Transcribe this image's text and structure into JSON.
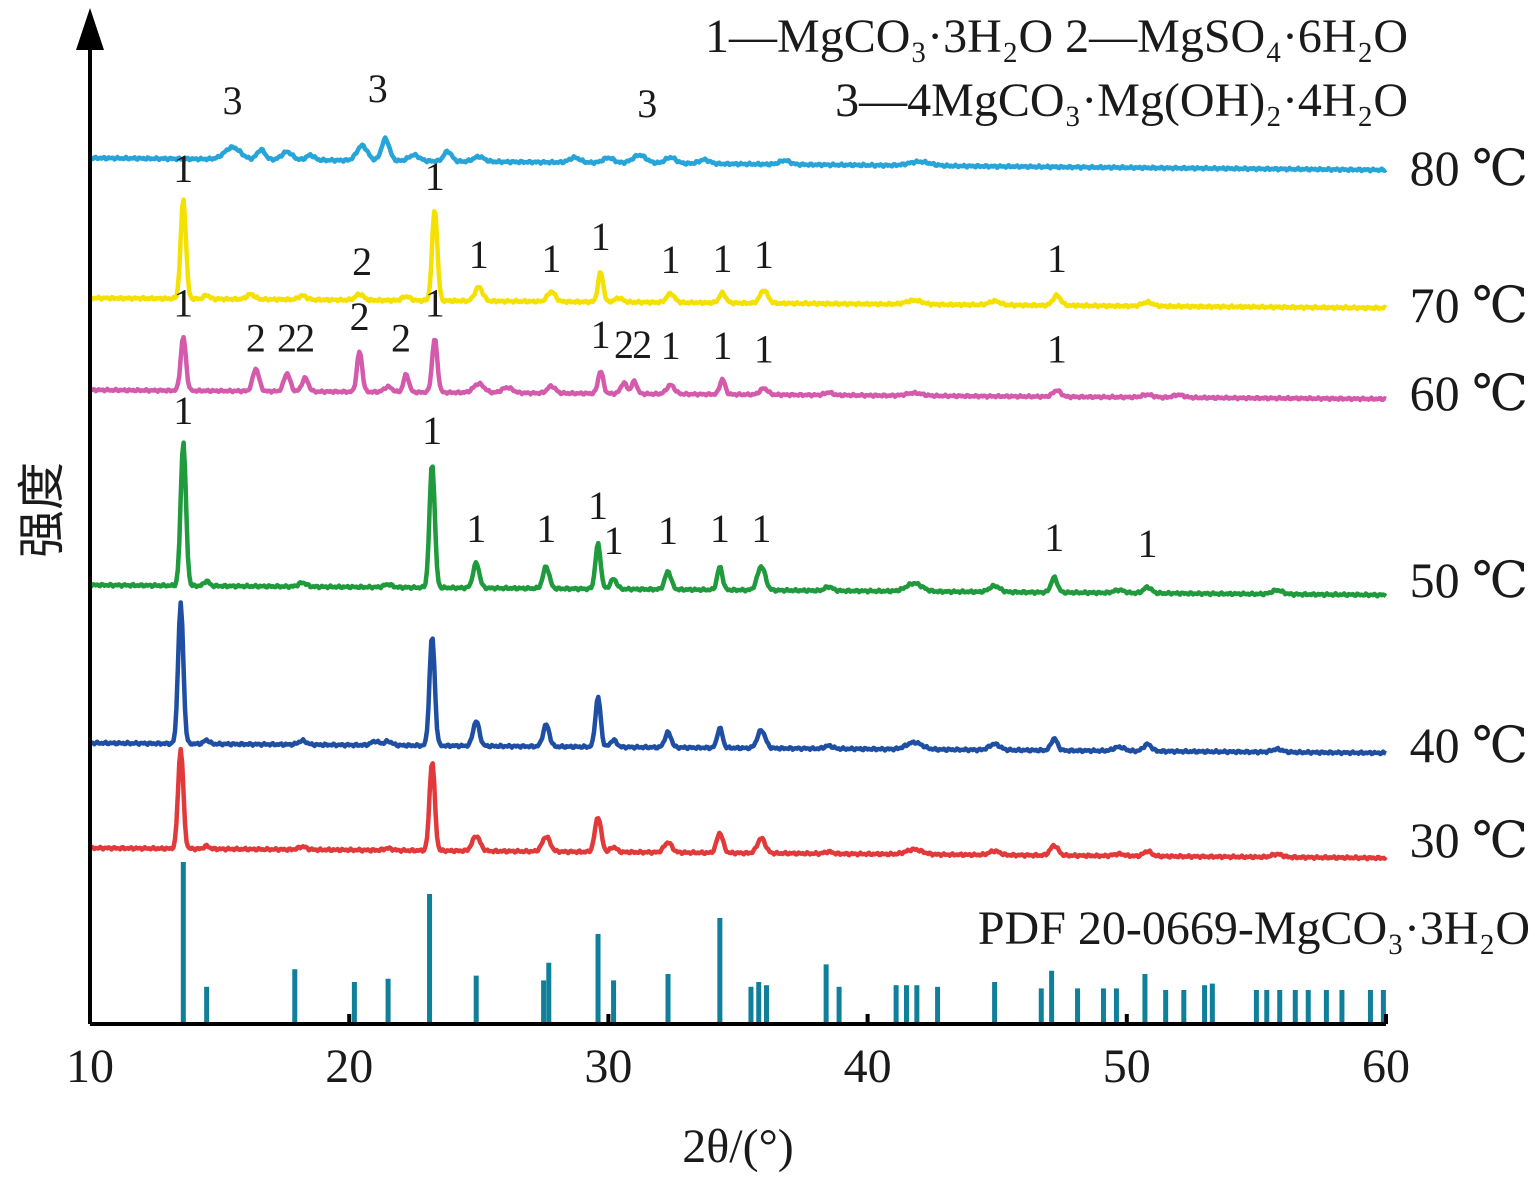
{
  "chart_data": {
    "type": "line",
    "xlabel": "2θ/(°)",
    "ylabel": "强度",
    "xlim": [
      10,
      60
    ],
    "x_ticks": [
      "10",
      "20",
      "30",
      "40",
      "50",
      "60"
    ],
    "grid": false,
    "legend_lines": [
      "1—MgCO₃·3H₂O    2—MgSO₄·6H₂O",
      "3—4MgCO₃·Mg(OH)₂·4H₂O"
    ],
    "reference_label": "PDF 20-0669-MgCO₃·3H₂O",
    "reference_sticks": [
      {
        "x": 13.6,
        "h": 1.0
      },
      {
        "x": 14.5,
        "h": 0.22
      },
      {
        "x": 17.9,
        "h": 0.33
      },
      {
        "x": 20.2,
        "h": 0.25
      },
      {
        "x": 21.5,
        "h": 0.27
      },
      {
        "x": 23.1,
        "h": 0.8
      },
      {
        "x": 24.9,
        "h": 0.29
      },
      {
        "x": 27.5,
        "h": 0.26
      },
      {
        "x": 27.7,
        "h": 0.37
      },
      {
        "x": 29.6,
        "h": 0.55
      },
      {
        "x": 30.2,
        "h": 0.26
      },
      {
        "x": 32.3,
        "h": 0.3
      },
      {
        "x": 34.3,
        "h": 0.65
      },
      {
        "x": 35.5,
        "h": 0.22
      },
      {
        "x": 35.8,
        "h": 0.25
      },
      {
        "x": 36.1,
        "h": 0.23
      },
      {
        "x": 38.4,
        "h": 0.36
      },
      {
        "x": 38.9,
        "h": 0.22
      },
      {
        "x": 41.1,
        "h": 0.23
      },
      {
        "x": 41.5,
        "h": 0.23
      },
      {
        "x": 41.9,
        "h": 0.23
      },
      {
        "x": 42.7,
        "h": 0.22
      },
      {
        "x": 44.9,
        "h": 0.25
      },
      {
        "x": 46.7,
        "h": 0.21
      },
      {
        "x": 47.1,
        "h": 0.32
      },
      {
        "x": 48.1,
        "h": 0.21
      },
      {
        "x": 49.1,
        "h": 0.21
      },
      {
        "x": 49.6,
        "h": 0.21
      },
      {
        "x": 50.7,
        "h": 0.3
      },
      {
        "x": 51.5,
        "h": 0.2
      },
      {
        "x": 52.2,
        "h": 0.2
      },
      {
        "x": 53.0,
        "h": 0.23
      },
      {
        "x": 53.3,
        "h": 0.24
      },
      {
        "x": 55.0,
        "h": 0.2
      },
      {
        "x": 55.4,
        "h": 0.2
      },
      {
        "x": 55.9,
        "h": 0.2
      },
      {
        "x": 56.5,
        "h": 0.2
      },
      {
        "x": 57.0,
        "h": 0.2
      },
      {
        "x": 57.7,
        "h": 0.2
      },
      {
        "x": 58.3,
        "h": 0.2
      },
      {
        "x": 59.4,
        "h": 0.2
      },
      {
        "x": 59.9,
        "h": 0.2
      }
    ],
    "series": [
      {
        "name": "80 ℃",
        "color": "#27a4d8",
        "start_level": 0.0,
        "end_level": -0.12,
        "peaks": [
          [
            15.5,
            0.12,
            0.3
          ],
          [
            16.6,
            0.1,
            0.15
          ],
          [
            17.6,
            0.08,
            0.2
          ],
          [
            18.5,
            0.05,
            0.15
          ],
          [
            20.5,
            0.15,
            0.2
          ],
          [
            21.4,
            0.22,
            0.15
          ],
          [
            22.5,
            0.06,
            0.2
          ],
          [
            23.8,
            0.1,
            0.15
          ],
          [
            25.0,
            0.05,
            0.2
          ],
          [
            28.7,
            0.05,
            0.2
          ],
          [
            30.0,
            0.05,
            0.2
          ],
          [
            31.2,
            0.08,
            0.25
          ],
          [
            32.4,
            0.06,
            0.2
          ],
          [
            33.7,
            0.04,
            0.2
          ],
          [
            36.8,
            0.04,
            0.2
          ],
          [
            42.0,
            0.04,
            0.4
          ]
        ],
        "markers": [
          {
            "label": "3",
            "x": 15.5,
            "y": 0.38
          },
          {
            "label": "3",
            "x": 21.1,
            "y": 0.5
          },
          {
            "label": "3",
            "x": 31.5,
            "y": 0.35
          }
        ]
      },
      {
        "name": "70 ℃",
        "color": "#f5e100",
        "start_level": 0.0,
        "end_level": -0.1,
        "peaks": [
          [
            13.6,
            1.0,
            0.1
          ],
          [
            14.5,
            0.04,
            0.1
          ],
          [
            16.2,
            0.05,
            0.15
          ],
          [
            18.2,
            0.04,
            0.15
          ],
          [
            20.4,
            0.06,
            0.15
          ],
          [
            22.2,
            0.04,
            0.15
          ],
          [
            23.3,
            0.92,
            0.1
          ],
          [
            25.0,
            0.14,
            0.15
          ],
          [
            27.8,
            0.1,
            0.15
          ],
          [
            29.7,
            0.3,
            0.1
          ],
          [
            30.4,
            0.04,
            0.15
          ],
          [
            32.4,
            0.09,
            0.15
          ],
          [
            34.4,
            0.1,
            0.12
          ],
          [
            36.0,
            0.13,
            0.15
          ],
          [
            41.8,
            0.04,
            0.3
          ],
          [
            44.9,
            0.04,
            0.2
          ],
          [
            47.3,
            0.1,
            0.15
          ],
          [
            50.8,
            0.04,
            0.2
          ]
        ],
        "markers": [
          {
            "label": "1",
            "x": 13.6,
            "y": 1.1
          },
          {
            "label": "1",
            "x": 23.3,
            "y": 1.02
          },
          {
            "label": "2",
            "x": 20.5,
            "y": 0.17
          },
          {
            "label": "1",
            "x": 25.0,
            "y": 0.24
          },
          {
            "label": "1",
            "x": 27.8,
            "y": 0.2
          },
          {
            "label": "1",
            "x": 29.7,
            "y": 0.42
          },
          {
            "label": "1",
            "x": 32.4,
            "y": 0.19
          },
          {
            "label": "1",
            "x": 34.4,
            "y": 0.2
          },
          {
            "label": "1",
            "x": 36.0,
            "y": 0.24
          },
          {
            "label": "1",
            "x": 47.3,
            "y": 0.2
          }
        ]
      },
      {
        "name": "60 ℃",
        "color": "#d45bac",
        "start_level": 0.0,
        "end_level": -0.1,
        "peaks": [
          [
            13.6,
            0.6,
            0.1
          ],
          [
            16.4,
            0.25,
            0.12
          ],
          [
            17.6,
            0.2,
            0.12
          ],
          [
            18.3,
            0.15,
            0.12
          ],
          [
            20.4,
            0.45,
            0.1
          ],
          [
            21.5,
            0.06,
            0.15
          ],
          [
            22.2,
            0.2,
            0.1
          ],
          [
            23.3,
            0.6,
            0.1
          ],
          [
            25.0,
            0.1,
            0.2
          ],
          [
            26.1,
            0.06,
            0.2
          ],
          [
            27.8,
            0.08,
            0.15
          ],
          [
            29.7,
            0.25,
            0.1
          ],
          [
            30.6,
            0.12,
            0.12
          ],
          [
            31.0,
            0.14,
            0.1
          ],
          [
            32.4,
            0.1,
            0.15
          ],
          [
            34.4,
            0.17,
            0.1
          ],
          [
            36.0,
            0.07,
            0.15
          ],
          [
            38.5,
            0.03,
            0.15
          ],
          [
            41.8,
            0.03,
            0.3
          ],
          [
            47.3,
            0.07,
            0.15
          ],
          [
            50.8,
            0.03,
            0.2
          ],
          [
            52.0,
            0.03,
            0.2
          ]
        ],
        "markers": [
          {
            "label": "1",
            "x": 13.6,
            "y": 0.75
          },
          {
            "label": "2",
            "x": 16.4,
            "y": 0.36
          },
          {
            "label": "2",
            "x": 17.6,
            "y": 0.36
          },
          {
            "label": "2",
            "x": 18.3,
            "y": 0.36
          },
          {
            "label": "2",
            "x": 20.4,
            "y": 0.6
          },
          {
            "label": "2",
            "x": 22.0,
            "y": 0.36
          },
          {
            "label": "1",
            "x": 23.3,
            "y": 0.75
          },
          {
            "label": "1",
            "x": 29.7,
            "y": 0.4
          },
          {
            "label": "2",
            "x": 30.6,
            "y": 0.29
          },
          {
            "label": "2",
            "x": 31.3,
            "y": 0.29
          },
          {
            "label": "1",
            "x": 32.4,
            "y": 0.28
          },
          {
            "label": "1",
            "x": 34.4,
            "y": 0.28
          },
          {
            "label": "1",
            "x": 36.0,
            "y": 0.24
          },
          {
            "label": "1",
            "x": 47.3,
            "y": 0.24
          }
        ]
      },
      {
        "name": "50 ℃",
        "color": "#1f9a3c",
        "start_level": 0.0,
        "end_level": -0.1,
        "peaks": [
          [
            13.6,
            1.45,
            0.1
          ],
          [
            14.5,
            0.05,
            0.1
          ],
          [
            18.2,
            0.04,
            0.15
          ],
          [
            21.5,
            0.03,
            0.15
          ],
          [
            23.2,
            1.25,
            0.1
          ],
          [
            24.9,
            0.25,
            0.12
          ],
          [
            27.6,
            0.22,
            0.12
          ],
          [
            29.6,
            0.45,
            0.1
          ],
          [
            30.2,
            0.1,
            0.12
          ],
          [
            32.3,
            0.18,
            0.12
          ],
          [
            34.3,
            0.23,
            0.1
          ],
          [
            35.9,
            0.24,
            0.15
          ],
          [
            38.5,
            0.04,
            0.15
          ],
          [
            41.8,
            0.08,
            0.3
          ],
          [
            44.9,
            0.06,
            0.2
          ],
          [
            47.2,
            0.15,
            0.12
          ],
          [
            49.7,
            0.03,
            0.2
          ],
          [
            50.8,
            0.06,
            0.15
          ],
          [
            55.8,
            0.04,
            0.2
          ]
        ],
        "markers": [
          {
            "label": "1",
            "x": 13.6,
            "y": 1.55
          },
          {
            "label": "1",
            "x": 23.2,
            "y": 1.35
          },
          {
            "label": "1",
            "x": 24.9,
            "y": 0.37
          },
          {
            "label": "1",
            "x": 27.6,
            "y": 0.37
          },
          {
            "label": "1",
            "x": 29.6,
            "y": 0.6
          },
          {
            "label": "1",
            "x": 30.2,
            "y": 0.25
          },
          {
            "label": "1",
            "x": 32.3,
            "y": 0.35
          },
          {
            "label": "1",
            "x": 34.3,
            "y": 0.37
          },
          {
            "label": "1",
            "x": 35.9,
            "y": 0.37
          },
          {
            "label": "1",
            "x": 47.2,
            "y": 0.28
          },
          {
            "label": "1",
            "x": 50.8,
            "y": 0.22
          }
        ]
      },
      {
        "name": "40 ℃",
        "color": "#1f4fa3",
        "start_level": 0.0,
        "end_level": -0.1,
        "peaks": [
          [
            13.5,
            1.4,
            0.1
          ],
          [
            14.5,
            0.04,
            0.1
          ],
          [
            18.2,
            0.04,
            0.15
          ],
          [
            21.0,
            0.04,
            0.15
          ],
          [
            21.5,
            0.04,
            0.15
          ],
          [
            23.2,
            1.1,
            0.1
          ],
          [
            24.9,
            0.25,
            0.12
          ],
          [
            27.6,
            0.22,
            0.12
          ],
          [
            29.6,
            0.5,
            0.1
          ],
          [
            30.2,
            0.07,
            0.12
          ],
          [
            32.3,
            0.15,
            0.12
          ],
          [
            34.3,
            0.2,
            0.1
          ],
          [
            35.9,
            0.18,
            0.15
          ],
          [
            38.5,
            0.03,
            0.15
          ],
          [
            41.8,
            0.07,
            0.3
          ],
          [
            44.9,
            0.06,
            0.2
          ],
          [
            47.2,
            0.12,
            0.12
          ],
          [
            49.7,
            0.04,
            0.2
          ],
          [
            50.8,
            0.07,
            0.15
          ],
          [
            55.8,
            0.03,
            0.2
          ]
        ],
        "markers": []
      },
      {
        "name": "30 ℃",
        "color": "#e23a3a",
        "start_level": 0.0,
        "end_level": -0.1,
        "peaks": [
          [
            13.5,
            1.0,
            0.1
          ],
          [
            14.5,
            0.03,
            0.1
          ],
          [
            18.2,
            0.03,
            0.15
          ],
          [
            21.5,
            0.02,
            0.15
          ],
          [
            23.2,
            0.9,
            0.1
          ],
          [
            24.9,
            0.15,
            0.15
          ],
          [
            27.6,
            0.15,
            0.15
          ],
          [
            29.6,
            0.35,
            0.12
          ],
          [
            30.2,
            0.05,
            0.12
          ],
          [
            32.3,
            0.1,
            0.15
          ],
          [
            34.3,
            0.2,
            0.12
          ],
          [
            35.9,
            0.15,
            0.15
          ],
          [
            38.5,
            0.02,
            0.15
          ],
          [
            41.8,
            0.05,
            0.3
          ],
          [
            44.9,
            0.04,
            0.2
          ],
          [
            47.2,
            0.1,
            0.15
          ],
          [
            49.7,
            0.02,
            0.2
          ],
          [
            50.8,
            0.05,
            0.15
          ],
          [
            55.8,
            0.03,
            0.2
          ]
        ],
        "markers": []
      }
    ]
  }
}
